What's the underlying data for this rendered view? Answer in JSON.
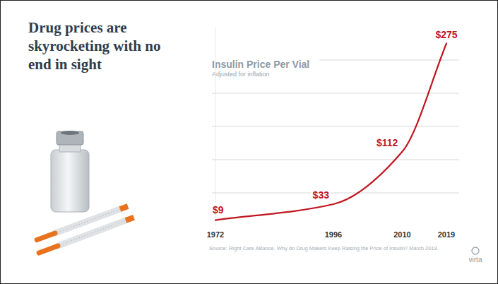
{
  "slide": {
    "headline": "Drug prices are skyrocketing with no end in sight",
    "source": "Source: Right Care Alliance. Why do Drug Makers Keep Raising the Price of Insulin? March 2018.",
    "logo": "virta"
  },
  "chart_data": {
    "type": "line",
    "title": "Insulin Price Per Vial",
    "subtitle": "Adjusted for inflation",
    "x": [
      1972,
      1996,
      2010,
      2019
    ],
    "values": [
      9,
      33,
      112,
      275
    ],
    "value_labels": [
      "$9",
      "$33",
      "$112",
      "$275"
    ],
    "data_labels": true,
    "color": "#c0161f",
    "xlim": [
      1972,
      2019
    ],
    "xticks": [
      1972,
      1996,
      2010,
      2019
    ],
    "ylim": [
      0,
      300
    ],
    "yticks": [
      50,
      100,
      150,
      200,
      250
    ],
    "grid": true,
    "tick_labels": "x"
  }
}
